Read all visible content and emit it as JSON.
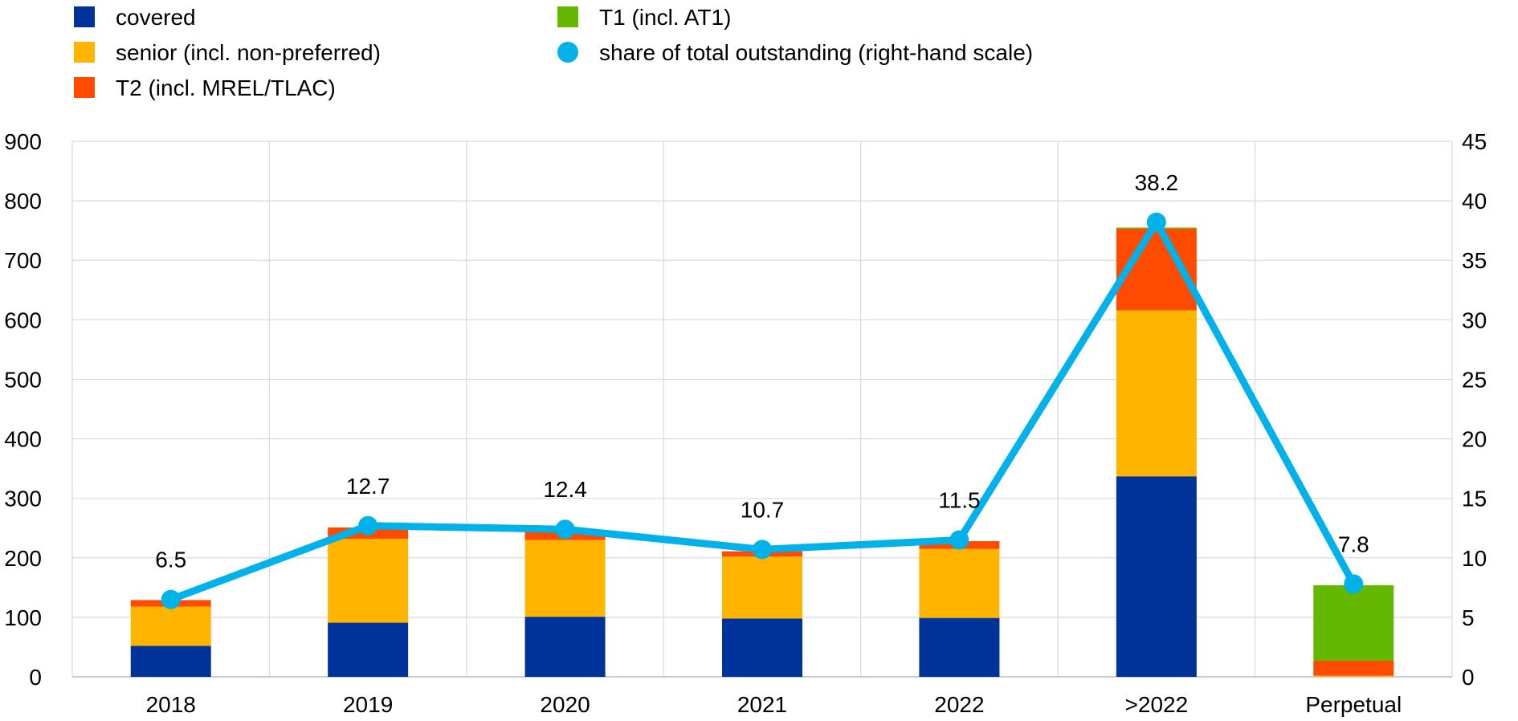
{
  "chart_data": {
    "type": "bar",
    "stacked": true,
    "categories": [
      "2018",
      "2019",
      "2020",
      "2021",
      "2022",
      ">2022",
      "Perpetual"
    ],
    "series": [
      {
        "name": "covered",
        "color": "#003399",
        "values": [
          52,
          91,
          101,
          98,
          99,
          337,
          0
        ]
      },
      {
        "name": "senior (incl. non-preferred)",
        "color": "#FFB400",
        "values": [
          66,
          141,
          129,
          104,
          116,
          279,
          2
        ]
      },
      {
        "name": "T2 (incl. MREL/TLAC)",
        "color": "#FF4B00",
        "values": [
          11,
          19,
          14,
          9,
          13,
          137,
          25
        ]
      },
      {
        "name": "T1 (incl. AT1)",
        "color": "#65B800",
        "values": [
          0,
          0,
          0,
          0,
          0,
          2,
          127
        ]
      }
    ],
    "line_series": {
      "name": "share of total outstanding (right-hand scale)",
      "color": "#00B1EA",
      "axis": "right",
      "values": [
        6.5,
        12.7,
        12.4,
        10.7,
        11.5,
        38.2,
        7.8
      ],
      "labels": [
        "6.5",
        "12.7",
        "12.4",
        "10.7",
        "11.5",
        "38.2",
        "7.8"
      ]
    },
    "ylim_left": [
      0,
      900
    ],
    "yticks_left": [
      "0",
      "100",
      "200",
      "300",
      "400",
      "500",
      "600",
      "700",
      "800",
      "900"
    ],
    "ylim_right": [
      0,
      45
    ],
    "yticks_right": [
      "0",
      "5",
      "10",
      "15",
      "20",
      "25",
      "30",
      "35",
      "40",
      "45"
    ],
    "grid": true,
    "legend_position": "top"
  }
}
